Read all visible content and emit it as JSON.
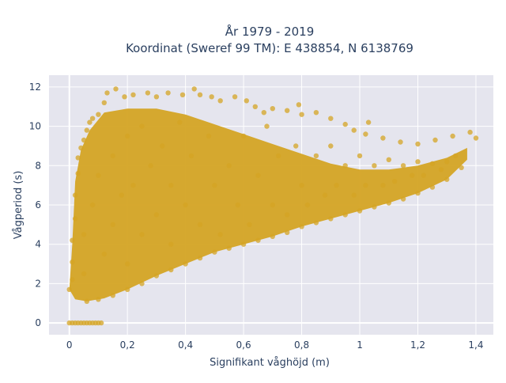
{
  "chart_data": {
    "type": "scatter",
    "title": [
      "År 1979 - 2019",
      "Koordinat (Sweref 99 TM): E 438854, N 6138769"
    ],
    "xlabel": "Signifikant våghöjd (m)",
    "ylabel": "Vågperiod (s)",
    "xlim": [
      -0.07,
      1.46
    ],
    "ylim": [
      -0.6,
      12.6
    ],
    "x_ticks": [
      0,
      0.2,
      0.4,
      0.6,
      0.8,
      1.0,
      1.2,
      1.4
    ],
    "x_tick_labels": [
      "0",
      "0,2",
      "0,4",
      "0,6",
      "0,8",
      "1",
      "1,2",
      "1,4"
    ],
    "y_ticks": [
      0,
      2,
      4,
      6,
      8,
      10,
      12
    ],
    "y_tick_labels": [
      "0",
      "2",
      "4",
      "6",
      "8",
      "10",
      "12"
    ],
    "grid": true,
    "marker_color": "#D4A424",
    "plot_bgcolor": "#E5E5EE",
    "series": [
      {
        "points": [
          [
            0.0,
            0.0
          ],
          [
            0.01,
            0.0
          ],
          [
            0.02,
            0.0
          ],
          [
            0.03,
            0.0
          ],
          [
            0.04,
            0.0
          ],
          [
            0.05,
            0.0
          ],
          [
            0.06,
            0.0
          ],
          [
            0.07,
            0.0
          ],
          [
            0.08,
            0.0
          ],
          [
            0.09,
            0.0
          ],
          [
            0.1,
            0.0
          ],
          [
            0.11,
            0.0
          ],
          [
            0.0,
            1.7
          ],
          [
            0.01,
            2.2
          ],
          [
            0.01,
            3.1
          ],
          [
            0.01,
            4.2
          ],
          [
            0.02,
            5.3
          ],
          [
            0.02,
            6.5
          ],
          [
            0.03,
            7.6
          ],
          [
            0.03,
            8.4
          ],
          [
            0.04,
            8.9
          ],
          [
            0.05,
            9.3
          ],
          [
            0.06,
            9.8
          ],
          [
            0.07,
            10.2
          ],
          [
            0.08,
            10.4
          ],
          [
            0.1,
            10.6
          ],
          [
            0.12,
            11.2
          ],
          [
            0.13,
            11.7
          ],
          [
            0.16,
            11.9
          ],
          [
            0.19,
            11.5
          ],
          [
            0.22,
            11.6
          ],
          [
            0.27,
            11.7
          ],
          [
            0.3,
            11.5
          ],
          [
            0.34,
            11.7
          ],
          [
            0.39,
            11.6
          ],
          [
            0.43,
            11.9
          ],
          [
            0.45,
            11.6
          ],
          [
            0.49,
            11.5
          ],
          [
            0.52,
            11.3
          ],
          [
            0.57,
            11.5
          ],
          [
            0.61,
            11.3
          ],
          [
            0.64,
            11.0
          ],
          [
            0.67,
            10.7
          ],
          [
            0.7,
            10.9
          ],
          [
            0.75,
            10.8
          ],
          [
            0.8,
            10.6
          ],
          [
            0.85,
            10.7
          ],
          [
            0.9,
            10.4
          ],
          [
            0.95,
            10.1
          ],
          [
            0.98,
            9.8
          ],
          [
            1.02,
            9.6
          ],
          [
            1.08,
            9.4
          ],
          [
            1.14,
            9.2
          ],
          [
            1.2,
            9.1
          ],
          [
            1.26,
            9.3
          ],
          [
            1.32,
            9.5
          ],
          [
            1.38,
            9.7
          ],
          [
            1.4,
            9.4
          ],
          [
            0.79,
            11.1
          ],
          [
            1.03,
            10.2
          ],
          [
            0.06,
            1.1
          ],
          [
            0.1,
            1.2
          ],
          [
            0.15,
            1.4
          ],
          [
            0.2,
            1.7
          ],
          [
            0.25,
            2.0
          ],
          [
            0.3,
            2.4
          ],
          [
            0.35,
            2.7
          ],
          [
            0.4,
            3.0
          ],
          [
            0.45,
            3.3
          ],
          [
            0.5,
            3.6
          ],
          [
            0.55,
            3.8
          ],
          [
            0.6,
            4.0
          ],
          [
            0.65,
            4.2
          ],
          [
            0.7,
            4.4
          ],
          [
            0.75,
            4.6
          ],
          [
            0.8,
            4.9
          ],
          [
            0.85,
            5.1
          ],
          [
            0.9,
            5.3
          ],
          [
            0.95,
            5.5
          ],
          [
            1.0,
            5.7
          ],
          [
            1.05,
            5.9
          ],
          [
            1.1,
            6.1
          ],
          [
            1.15,
            6.3
          ],
          [
            1.2,
            6.6
          ],
          [
            1.25,
            6.9
          ],
          [
            1.3,
            7.3
          ],
          [
            1.35,
            7.9
          ],
          [
            0.05,
            2.5
          ],
          [
            0.05,
            4.5
          ],
          [
            0.08,
            6.0
          ],
          [
            0.1,
            7.5
          ],
          [
            0.12,
            3.5
          ],
          [
            0.15,
            5.0
          ],
          [
            0.15,
            8.5
          ],
          [
            0.18,
            6.5
          ],
          [
            0.2,
            3.0
          ],
          [
            0.2,
            9.5
          ],
          [
            0.22,
            7.0
          ],
          [
            0.25,
            4.5
          ],
          [
            0.25,
            10.0
          ],
          [
            0.28,
            8.0
          ],
          [
            0.3,
            5.5
          ],
          [
            0.32,
            9.0
          ],
          [
            0.35,
            4.0
          ],
          [
            0.35,
            7.0
          ],
          [
            0.38,
            10.2
          ],
          [
            0.4,
            6.0
          ],
          [
            0.42,
            8.5
          ],
          [
            0.45,
            5.0
          ],
          [
            0.48,
            9.5
          ],
          [
            0.5,
            7.0
          ],
          [
            0.52,
            4.5
          ],
          [
            0.55,
            8.0
          ],
          [
            0.58,
            6.0
          ],
          [
            0.6,
            9.5
          ],
          [
            0.62,
            5.0
          ],
          [
            0.65,
            7.5
          ],
          [
            0.68,
            10.0
          ],
          [
            0.7,
            6.0
          ],
          [
            0.72,
            8.5
          ],
          [
            0.75,
            5.5
          ],
          [
            0.78,
            9.0
          ],
          [
            0.8,
            7.0
          ],
          [
            0.82,
            6.0
          ],
          [
            0.85,
            8.5
          ],
          [
            0.88,
            6.5
          ],
          [
            0.9,
            9.0
          ],
          [
            0.92,
            7.0
          ],
          [
            0.95,
            8.0
          ],
          [
            0.98,
            6.5
          ],
          [
            1.0,
            8.5
          ],
          [
            1.02,
            7.0
          ],
          [
            1.05,
            8.0
          ],
          [
            1.08,
            7.0
          ],
          [
            1.1,
            8.3
          ],
          [
            1.12,
            7.2
          ],
          [
            1.15,
            8.0
          ],
          [
            1.18,
            7.5
          ],
          [
            1.2,
            8.2
          ],
          [
            1.22,
            7.5
          ],
          [
            1.25,
            8.1
          ],
          [
            1.28,
            7.8
          ],
          [
            1.3,
            8.2
          ],
          [
            1.33,
            8.5
          ]
        ]
      }
    ]
  }
}
